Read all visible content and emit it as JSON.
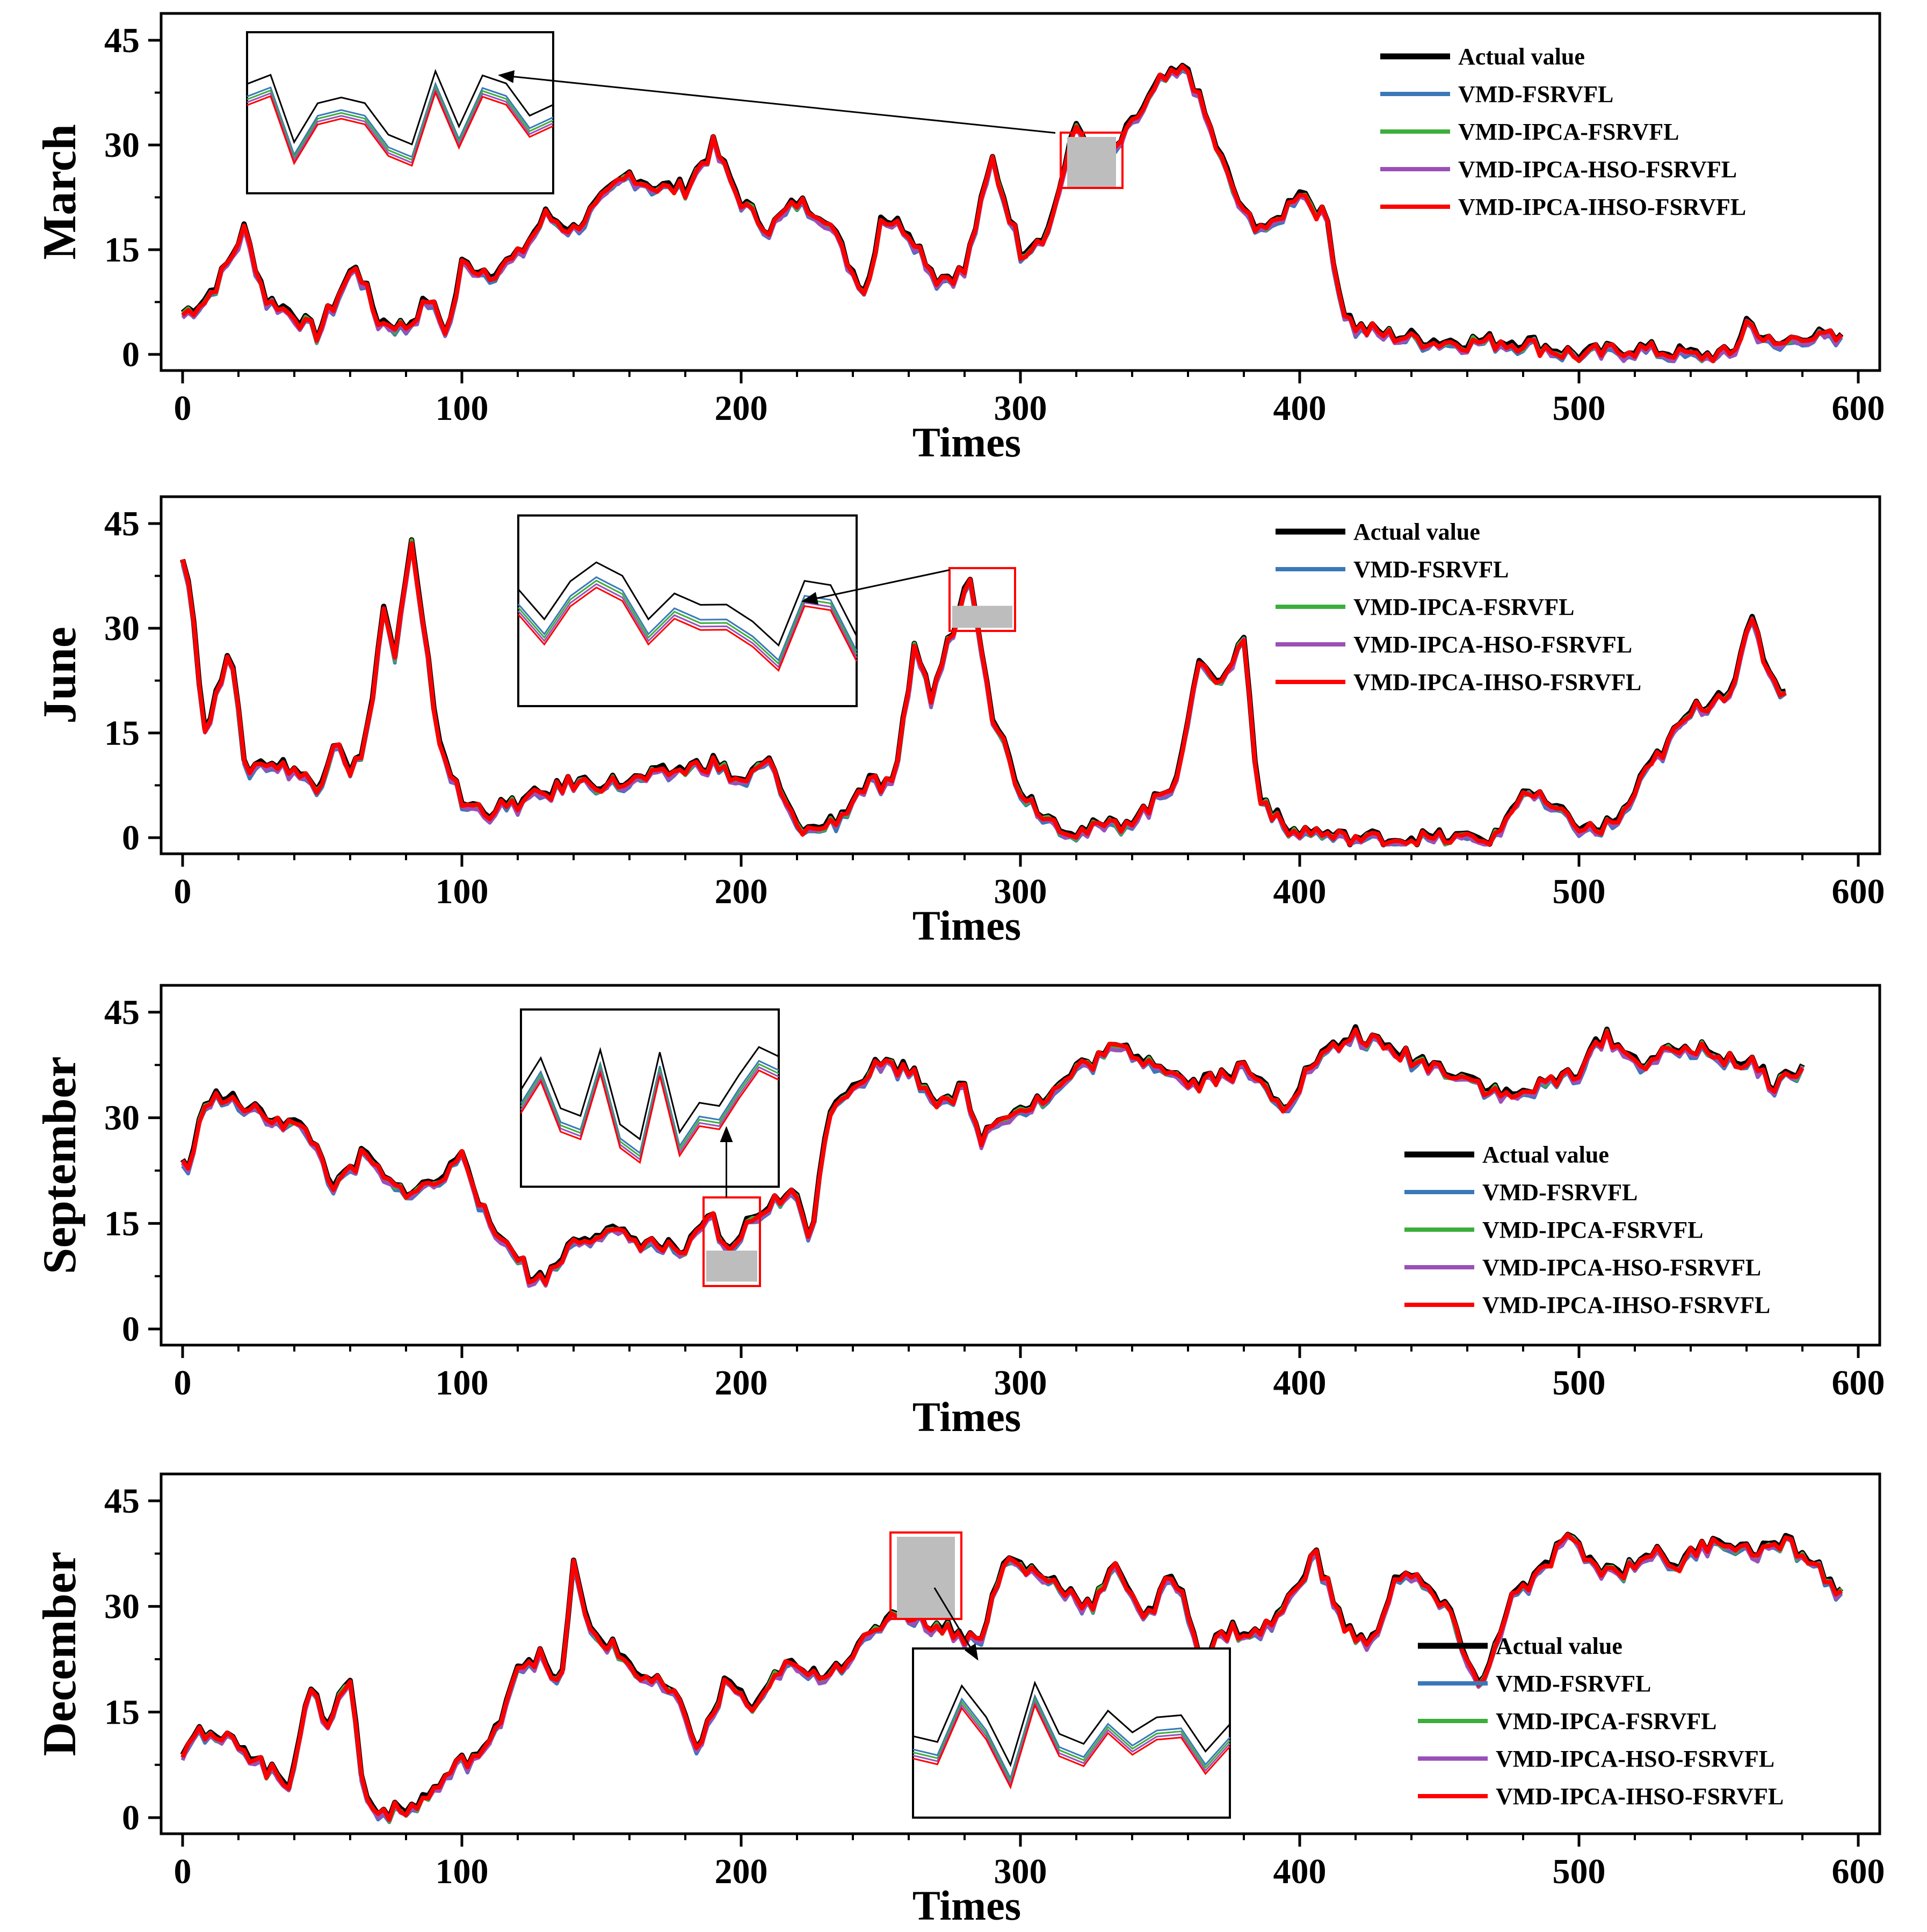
{
  "figure": {
    "xlabel": "Times",
    "xlim": [
      0,
      600
    ],
    "ylim": [
      0,
      45
    ]
  },
  "colors": {
    "Actual value": "#000000",
    "VMD-FSRVFL": "#3a78b8",
    "VMD-IPCA-FSRVFL": "#3cae3c",
    "VMD-IPCA-HSO-FSRVFL": "#9a50b8",
    "VMD-IPCA-IHSO-FSRVFL": "#ff0000",
    "highlight": "#bdbdbd"
  },
  "chart_data": [
    {
      "type": "line",
      "ylabel": "March",
      "xlabel": "Times",
      "xlim": [
        0,
        600
      ],
      "ylim": [
        0,
        45
      ],
      "xticks": [
        0,
        100,
        200,
        300,
        400,
        500,
        600
      ],
      "yticks": [
        0,
        15,
        30,
        45
      ],
      "legend": [
        "Actual value",
        "VMD-FSRVFL",
        "VMD-IPCA-FSRVFL",
        "VMD-IPCA-HSO-FSRVFL",
        "VMD-IPCA-IHSO-FSRVFL"
      ],
      "legend_position": "top-right",
      "x_end": 595,
      "series_actual": {
        "name": "Actual value",
        "x": [
          0,
          8,
          15,
          22,
          30,
          40,
          48,
          55,
          62,
          70,
          80,
          88,
          95,
          100,
          110,
          120,
          130,
          140,
          150,
          160,
          170,
          180,
          190,
          200,
          210,
          220,
          230,
          240,
          245,
          250,
          260,
          270,
          280,
          290,
          300,
          310,
          320,
          330,
          340,
          350,
          360,
          370,
          380,
          390,
          400,
          410,
          415,
          420,
          430,
          450,
          480,
          500,
          520,
          540,
          555,
          560,
          570,
          580,
          595
        ],
        "values": [
          6,
          8,
          12,
          18,
          8,
          6,
          3,
          8,
          13,
          5,
          4,
          8,
          3,
          13,
          12,
          14,
          20,
          18,
          22,
          26,
          24,
          24,
          30,
          22,
          18,
          22,
          20,
          12,
          9,
          20,
          18,
          11,
          12,
          28,
          15,
          18,
          33,
          27,
          33,
          39,
          41,
          30,
          20,
          18,
          24,
          19,
          7,
          4,
          3,
          2,
          2,
          0,
          1,
          0,
          0,
          5,
          1,
          3,
          2
        ]
      },
      "inset": {
        "source_x": [
          310,
          332
        ],
        "source_y": [
          24,
          31
        ],
        "box": "top-left"
      }
    },
    {
      "type": "line",
      "ylabel": "June",
      "xlabel": "Times",
      "xlim": [
        0,
        600
      ],
      "ylim": [
        0,
        45
      ],
      "xticks": [
        0,
        100,
        200,
        300,
        400,
        500,
        600
      ],
      "yticks": [
        0,
        15,
        30,
        45
      ],
      "legend": [
        "Actual value",
        "VMD-FSRVFL",
        "VMD-IPCA-FSRVFL",
        "VMD-IPCA-HSO-FSRVFL",
        "VMD-IPCA-IHSO-FSRVFL"
      ],
      "legend_position": "top-right",
      "x_end": 575,
      "series_actual": {
        "name": "Actual value",
        "x": [
          0,
          3,
          8,
          12,
          17,
          22,
          30,
          40,
          48,
          55,
          60,
          65,
          72,
          76,
          82,
          86,
          92,
          100,
          110,
          120,
          140,
          160,
          180,
          190,
          200,
          210,
          218,
          225,
          235,
          245,
          255,
          262,
          268,
          275,
          282,
          290,
          300,
          310,
          320,
          335,
          345,
          355,
          365,
          372,
          380,
          385,
          395,
          405,
          415,
          430,
          450,
          470,
          480,
          495,
          505,
          515,
          525,
          540,
          555,
          562,
          568,
          575
        ],
        "values": [
          41,
          35,
          15,
          20,
          29,
          10,
          11,
          10,
          7,
          15,
          10,
          12,
          33,
          26,
          42,
          30,
          14,
          5,
          4,
          5,
          8,
          8,
          10,
          11,
          8,
          11,
          3,
          1,
          3,
          8,
          7,
          28,
          20,
          29,
          38,
          18,
          7,
          3,
          1,
          2,
          4,
          8,
          26,
          22,
          29,
          7,
          1,
          1,
          0,
          0,
          0,
          0,
          7,
          3,
          1,
          3,
          10,
          18,
          22,
          31,
          24,
          20
        ]
      },
      "inset": {
        "source_x": [
          270,
          292
        ],
        "source_y": [
          28,
          39
        ],
        "box": "top-left"
      }
    },
    {
      "type": "line",
      "ylabel": "September",
      "xlabel": "Times",
      "xlim": [
        0,
        600
      ],
      "ylim": [
        0,
        45
      ],
      "xticks": [
        0,
        100,
        200,
        300,
        400,
        500,
        600
      ],
      "yticks": [
        0,
        15,
        30,
        45
      ],
      "legend": [
        "Actual value",
        "VMD-FSRVFL",
        "VMD-IPCA-FSRVFL",
        "VMD-IPCA-HSO-FSRVFL",
        "VMD-IPCA-IHSO-FSRVFL"
      ],
      "legend_position": "right",
      "x_end": 580,
      "series_actual": {
        "name": "Actual value",
        "x": [
          0,
          3,
          8,
          15,
          25,
          35,
          45,
          55,
          65,
          75,
          85,
          95,
          100,
          110,
          118,
          125,
          132,
          140,
          150,
          160,
          170,
          180,
          190,
          195,
          200,
          210,
          220,
          225,
          232,
          240,
          250,
          260,
          270,
          280,
          285,
          295,
          310,
          320,
          335,
          350,
          360,
          370,
          380,
          395,
          405,
          420,
          430,
          445,
          460,
          475,
          490,
          500,
          510,
          520,
          540,
          560,
          570,
          580
        ],
        "values": [
          24,
          23,
          33,
          33,
          31,
          30,
          28,
          20,
          25,
          20,
          20,
          22,
          26,
          14,
          12,
          7,
          8,
          13,
          14,
          13,
          12,
          11,
          16,
          10,
          14,
          18,
          19,
          13,
          32,
          35,
          38,
          37,
          33,
          34,
          27,
          31,
          33,
          37,
          40,
          38,
          35,
          36,
          37,
          32,
          38,
          42,
          40,
          38,
          36,
          33,
          35,
          37,
          42,
          38,
          40,
          38,
          35,
          37
        ]
      },
      "inset": {
        "source_x": [
          181,
          201
        ],
        "source_y": [
          8,
          21
        ],
        "box": "top-left"
      }
    },
    {
      "type": "line",
      "ylabel": "December",
      "xlabel": "Times",
      "xlim": [
        0,
        600
      ],
      "ylim": [
        0,
        45
      ],
      "xticks": [
        0,
        100,
        200,
        300,
        400,
        500,
        600
      ],
      "yticks": [
        0,
        15,
        30,
        45
      ],
      "legend": [
        "Actual value",
        "VMD-FSRVFL",
        "VMD-IPCA-FSRVFL",
        "VMD-IPCA-HSO-FSRVFL",
        "VMD-IPCA-IHSO-FSRVFL"
      ],
      "legend_position": "bottom-right",
      "x_end": 595,
      "series_actual": {
        "name": "Actual value",
        "x": [
          0,
          5,
          10,
          20,
          30,
          38,
          45,
          52,
          60,
          65,
          72,
          80,
          90,
          100,
          110,
          120,
          128,
          135,
          140,
          145,
          155,
          165,
          175,
          185,
          195,
          205,
          215,
          225,
          235,
          245,
          255,
          265,
          275,
          285,
          295,
          305,
          315,
          325,
          335,
          345,
          355,
          365,
          375,
          385,
          395,
          405,
          415,
          425,
          435,
          445,
          455,
          465,
          475,
          485,
          495,
          505,
          515,
          525,
          535,
          550,
          560,
          575,
          585,
          595
        ],
        "values": [
          10,
          13,
          11,
          11,
          7,
          5,
          18,
          14,
          20,
          3,
          1,
          1,
          4,
          8,
          10,
          22,
          23,
          18,
          36,
          27,
          24,
          20,
          18,
          10,
          20,
          15,
          22,
          20,
          22,
          25,
          30,
          28,
          27,
          25,
          37,
          35,
          33,
          30,
          36,
          28,
          35,
          23,
          27,
          26,
          30,
          38,
          28,
          24,
          35,
          33,
          28,
          18,
          31,
          34,
          40,
          36,
          35,
          38,
          36,
          40,
          38,
          39,
          36,
          31
        ]
      },
      "inset": {
        "source_x": [
          248,
          272
        ],
        "source_y": [
          28,
          41
        ],
        "box": "bottom-center"
      }
    }
  ]
}
